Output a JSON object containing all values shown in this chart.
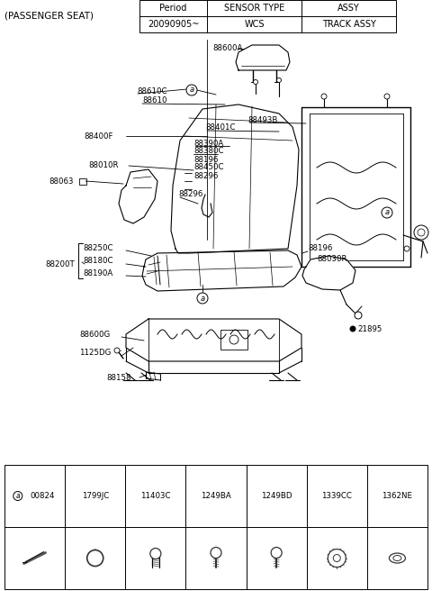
{
  "title": "(PASSENGER SEAT)",
  "bg_color": "#ffffff",
  "lc": "#000000",
  "table_header": [
    "Period",
    "SENSOR TYPE",
    "ASSY"
  ],
  "table_row": [
    "20090905~",
    "WCS",
    "TRACK ASSY"
  ],
  "fig_width": 4.8,
  "fig_height": 6.56,
  "dpi": 100
}
